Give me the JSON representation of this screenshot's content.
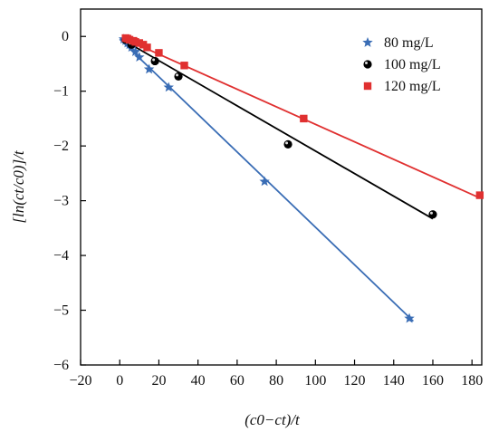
{
  "chart_data": {
    "type": "scatter",
    "title": "",
    "xlabel": "(c0−ct)/t",
    "ylabel": "[ln(ct/c0)]/t",
    "xlim": [
      -20,
      185
    ],
    "ylim": [
      -6,
      0.5
    ],
    "x_ticks": [
      -20,
      0,
      20,
      40,
      60,
      80,
      100,
      120,
      140,
      160,
      180
    ],
    "y_ticks": [
      0,
      -1,
      -2,
      -3,
      -4,
      -5,
      -6
    ],
    "grid": false,
    "legend_position": "top-right",
    "series": [
      {
        "name": "80 mg/L",
        "marker": "star",
        "color": "#3a6db5",
        "x": [
          2,
          3,
          4,
          5,
          6,
          8,
          10,
          15,
          25,
          74,
          148
        ],
        "y": [
          -0.05,
          -0.08,
          -0.12,
          -0.15,
          -0.2,
          -0.28,
          -0.38,
          -0.6,
          -0.93,
          -2.65,
          -5.15
        ],
        "fit": {
          "x": [
            0,
            150
          ],
          "y": [
            -0.05,
            -5.2
          ]
        }
      },
      {
        "name": "100 mg/L",
        "marker": "circle",
        "color": "#000000",
        "x": [
          3,
          6,
          18,
          30,
          86,
          160
        ],
        "y": [
          -0.06,
          -0.15,
          -0.45,
          -0.73,
          -1.97,
          -3.25
        ],
        "fit": {
          "x": [
            1,
            160
          ],
          "y": [
            -0.05,
            -3.33
          ]
        }
      },
      {
        "name": "120 mg/L",
        "marker": "square",
        "color": "#e03030",
        "x": [
          3,
          4,
          5,
          7,
          8,
          10,
          12,
          14,
          20,
          33,
          94,
          184
        ],
        "y": [
          -0.03,
          -0.04,
          -0.06,
          -0.08,
          -0.1,
          -0.12,
          -0.15,
          -0.2,
          -0.3,
          -0.53,
          -1.5,
          -2.9
        ],
        "fit": {
          "x": [
            1,
            184
          ],
          "y": [
            -0.02,
            -2.95
          ]
        }
      }
    ]
  }
}
